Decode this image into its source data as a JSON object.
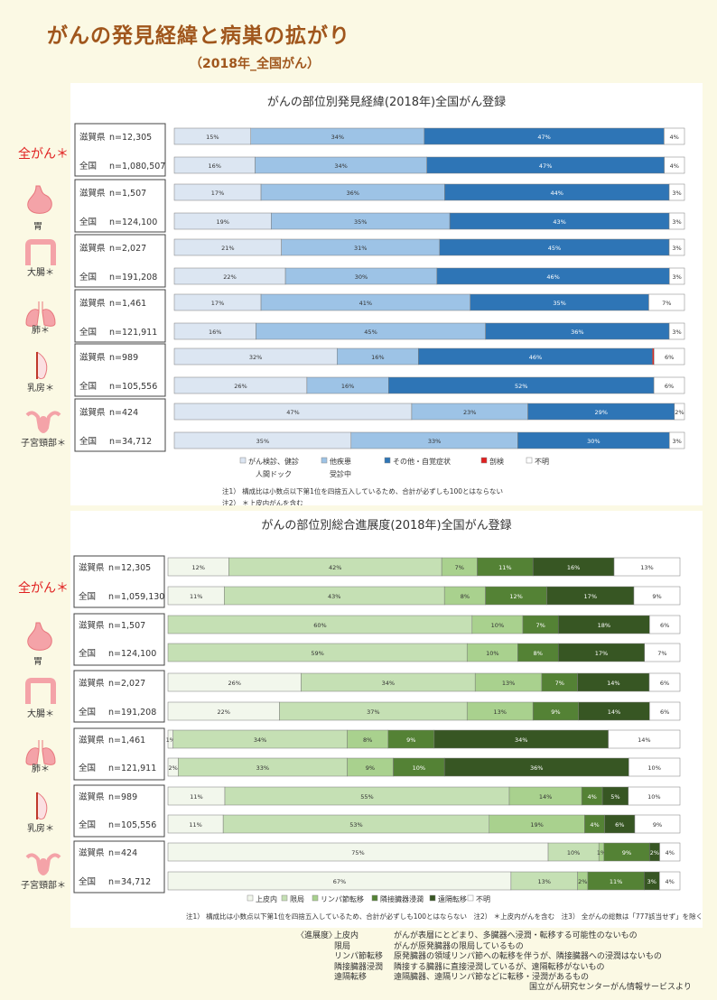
{
  "header": {
    "title": "がんの発見経緯と病巣の拡がり",
    "subtitle": "（2018年_全国がん）"
  },
  "organs": [
    {
      "label": "全がん＊",
      "icon": "",
      "red": true
    },
    {
      "label": "胃",
      "icon": "stomach-icon",
      "red": false
    },
    {
      "label": "大腸＊",
      "icon": "colon-icon",
      "red": false
    },
    {
      "label": "肺＊",
      "icon": "lungs-icon",
      "red": false
    },
    {
      "label": "乳房＊",
      "icon": "breast-icon",
      "red": false
    },
    {
      "label": "子宮頸部＊",
      "icon": "uterus-icon",
      "red": false
    }
  ],
  "colors": {
    "c1_screening": "#dce6f2",
    "c1_other_disease": "#9dc3e6",
    "c1_symptom": "#2e75b6",
    "c1_autopsy": "#e02020",
    "c1_unknown": "#ffffff",
    "c2_in_situ": "#f2f7ec",
    "c2_localized": "#c5e0b4",
    "c2_lymph": "#a9d18e",
    "c2_adjacent": "#548235",
    "c2_distant": "#375623",
    "c2_unknown": "#ffffff"
  },
  "chart_data": [
    {
      "type": "bar",
      "orientation": "horizontal",
      "stacked": true,
      "normalized": true,
      "title": "がんの部位別発見経緯(2018年)全国がん登録",
      "groups": [
        {
          "rows": [
            {
              "area": "滋賀県",
              "n": "n=12,305"
            },
            {
              "area": "全国",
              "n": "n=1,080,507"
            }
          ]
        },
        {
          "rows": [
            {
              "area": "滋賀県",
              "n": "n=1,507"
            },
            {
              "area": "全国",
              "n": "n=124,100"
            }
          ]
        },
        {
          "rows": [
            {
              "area": "滋賀県",
              "n": "n=2,027"
            },
            {
              "area": "全国",
              "n": "n=191,208"
            }
          ]
        },
        {
          "rows": [
            {
              "area": "滋賀県",
              "n": "n=1,461"
            },
            {
              "area": "全国",
              "n": "n=121,911"
            }
          ]
        },
        {
          "rows": [
            {
              "area": "滋賀県",
              "n": "n=989"
            },
            {
              "area": "全国",
              "n": "n=105,556"
            }
          ]
        },
        {
          "rows": [
            {
              "area": "滋賀県",
              "n": "n=424"
            },
            {
              "area": "全国",
              "n": "n=34,712"
            }
          ]
        }
      ],
      "series": [
        {
          "name": "がん検診、健診 人間ドック",
          "color": "c1_screening",
          "values": [
            15,
            16,
            17,
            19,
            21,
            22,
            17,
            16,
            32,
            26,
            47,
            35
          ]
        },
        {
          "name": "他疾患 受診中",
          "color": "c1_other_disease",
          "values": [
            34,
            34,
            36,
            35,
            31,
            30,
            41,
            45,
            16,
            16,
            23,
            33
          ]
        },
        {
          "name": "その他・自覚症状",
          "color": "c1_symptom",
          "values": [
            47,
            47,
            44,
            43,
            45,
            46,
            35,
            36,
            46,
            52,
            29,
            30
          ]
        },
        {
          "name": "剖検",
          "color": "c1_autopsy",
          "values": [
            0,
            0,
            0,
            0,
            0,
            0,
            0,
            0,
            0.3,
            0,
            0,
            0
          ]
        },
        {
          "name": "不明",
          "color": "c1_unknown",
          "values": [
            4,
            4,
            3,
            3,
            3,
            3,
            7,
            3,
            6,
            6,
            2,
            3
          ]
        }
      ],
      "legend": [
        {
          "line1": "がん検診、健診",
          "line2": "人間ドック",
          "color": "c1_screening"
        },
        {
          "line1": "他疾患",
          "line2": "受診中",
          "color": "c1_other_disease"
        },
        {
          "line1": "その他・自覚症状",
          "line2": "",
          "color": "c1_symptom"
        },
        {
          "line1": "剖検",
          "line2": "",
          "color": "c1_autopsy"
        },
        {
          "line1": "不明",
          "line2": "",
          "color": "c1_unknown"
        }
      ],
      "notes": [
        "注1） 構成比は小数点以下第1位を四捨五入しているため、合計が必ずしも100とはならない",
        "注2） ＊上皮内がんを含む"
      ]
    },
    {
      "type": "bar",
      "orientation": "horizontal",
      "stacked": true,
      "normalized": true,
      "title": "がんの部位別総合進展度(2018年)全国がん登録",
      "groups": [
        {
          "rows": [
            {
              "area": "滋賀県",
              "n": "n=12,305"
            },
            {
              "area": "全国",
              "n": "n=1,059,130"
            }
          ]
        },
        {
          "rows": [
            {
              "area": "滋賀県",
              "n": "n=1,507"
            },
            {
              "area": "全国",
              "n": "n=124,100"
            }
          ]
        },
        {
          "rows": [
            {
              "area": "滋賀県",
              "n": "n=2,027"
            },
            {
              "area": "全国",
              "n": "n=191,208"
            }
          ]
        },
        {
          "rows": [
            {
              "area": "滋賀県",
              "n": "n=1,461"
            },
            {
              "area": "全国",
              "n": "n=121,911"
            }
          ]
        },
        {
          "rows": [
            {
              "area": "滋賀県",
              "n": "n=989"
            },
            {
              "area": "全国",
              "n": "n=105,556"
            }
          ]
        },
        {
          "rows": [
            {
              "area": "滋賀県",
              "n": "n=424"
            },
            {
              "area": "全国",
              "n": "n=34,712"
            }
          ]
        }
      ],
      "series": [
        {
          "name": "上皮内",
          "color": "c2_in_situ",
          "values": [
            12,
            11,
            0,
            0,
            26,
            22,
            1,
            2,
            11,
            11,
            75,
            67
          ]
        },
        {
          "name": "限局",
          "color": "c2_localized",
          "values": [
            42,
            43,
            60,
            59,
            34,
            37,
            34,
            33,
            55,
            53,
            10,
            13
          ]
        },
        {
          "name": "リンパ節転移",
          "color": "c2_lymph",
          "values": [
            7,
            8,
            10,
            10,
            13,
            13,
            8,
            9,
            14,
            19,
            1,
            2
          ]
        },
        {
          "name": "隣接臓器浸潤",
          "color": "c2_adjacent",
          "values": [
            11,
            12,
            7,
            8,
            7,
            9,
            9,
            10,
            4,
            4,
            9,
            11
          ]
        },
        {
          "name": "遠隔転移",
          "color": "c2_distant",
          "values": [
            16,
            17,
            18,
            17,
            14,
            14,
            34,
            36,
            5,
            6,
            2,
            3
          ]
        },
        {
          "name": "不明",
          "color": "c2_unknown",
          "values": [
            13,
            9,
            6,
            7,
            6,
            6,
            14,
            10,
            10,
            9,
            4,
            4
          ]
        }
      ],
      "legend": [
        {
          "line1": "上皮内",
          "line2": "",
          "color": "c2_in_situ"
        },
        {
          "line1": "限局",
          "line2": "",
          "color": "c2_localized"
        },
        {
          "line1": "リンパ節転移",
          "line2": "",
          "color": "c2_lymph"
        },
        {
          "line1": "隣接臓器浸潤",
          "line2": "",
          "color": "c2_adjacent"
        },
        {
          "line1": "遠隔転移",
          "line2": "",
          "color": "c2_distant"
        },
        {
          "line1": "不明",
          "line2": "",
          "color": "c2_unknown"
        }
      ],
      "notes": [
        "注1） 構成比は小数点以下第1位を四捨五入しているため、合計が必ずしも100とはならない　注2） ＊上皮内がんを含む　注3） 全がんの総数は「777該当せず」を除く"
      ]
    }
  ],
  "footer": {
    "heading": "〈進展度〉",
    "definitions": [
      {
        "term": "上皮内",
        "desc": "がんが表層にとどまり、多臓器へ浸潤・転移する可能性のないもの"
      },
      {
        "term": "限局",
        "desc": "がんが原発臓器の限局しているもの"
      },
      {
        "term": "リンパ節転移",
        "desc": "原発臓器の領域リンパ節への転移を伴うが、隣接臓器への浸潤はないもの"
      },
      {
        "term": "隣接臓器浸潤",
        "desc": "隣接する臓器に直接浸潤しているが、遠隔転移がないもの"
      },
      {
        "term": "遠隔転移",
        "desc": "遠隔臓器、遠隔リンパ節などに転移・浸潤があるもの"
      }
    ],
    "source": "国立がん研究センターがん情報サービスより"
  }
}
